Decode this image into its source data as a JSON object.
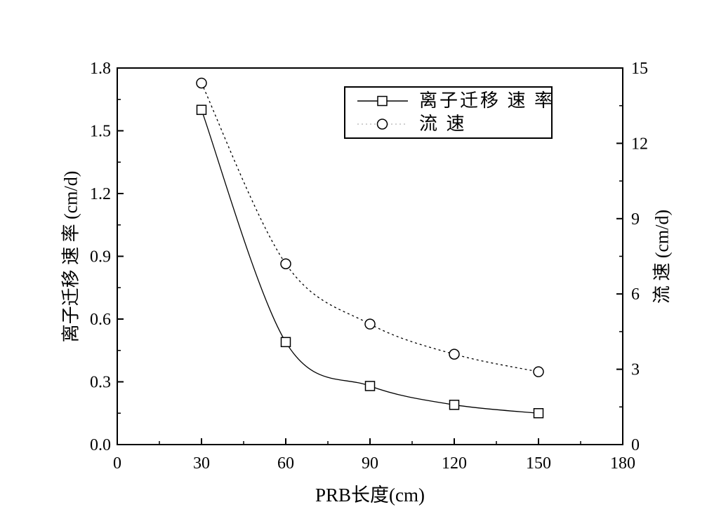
{
  "figure": {
    "background": "#ffffff",
    "axis_color": "#000000",
    "dashed_legend_sample_color": "#c0c0c0"
  },
  "chart_data": {
    "type": "line",
    "title": "",
    "x": [
      30,
      60,
      90,
      120,
      150
    ],
    "series": [
      {
        "name": "离子迁移 速 率",
        "axis": "left",
        "marker": "square",
        "line_style": "solid",
        "color": "#000000",
        "values": [
          1.6,
          0.49,
          0.28,
          0.19,
          0.15
        ]
      },
      {
        "name": "流 速",
        "axis": "right",
        "marker": "circle",
        "line_style": "dashed",
        "color": "#000000",
        "values": [
          14.4,
          7.2,
          4.8,
          3.6,
          2.9
        ]
      }
    ],
    "xlabel": "PRB长度(cm)",
    "ylabel_left": "离子迁移 速 率 (cm/d)",
    "ylabel_right": "流 速 (cm/d)",
    "xlim": [
      0,
      180
    ],
    "ylim_left": [
      0,
      1.8
    ],
    "ylim_right": [
      0,
      15
    ],
    "xticks": [
      0,
      30,
      60,
      90,
      120,
      150,
      180
    ],
    "yticks_left": [
      "0.0",
      "0.3",
      "0.6",
      "0.9",
      "1.2",
      "1.5",
      "1.8"
    ],
    "yticks_right": [
      0,
      3,
      6,
      9,
      12,
      15
    ],
    "minor_ticks": "midpoint-between-majors",
    "grid": false,
    "legend": {
      "position": "top-center",
      "items": [
        {
          "label": "离子迁移 速 率",
          "marker": "square",
          "line_style": "solid"
        },
        {
          "label": "流 速",
          "marker": "circle",
          "line_style": "dashed"
        }
      ]
    }
  }
}
